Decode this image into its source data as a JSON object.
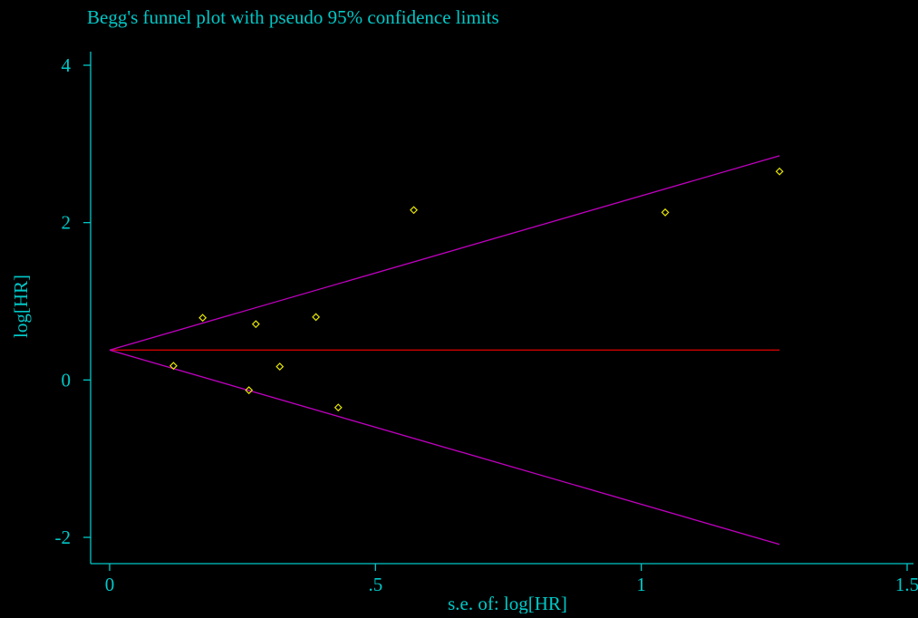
{
  "chart_data": {
    "type": "scatter",
    "title": "Begg's funnel plot with pseudo 95% confidence limits",
    "xlabel": "s.e. of: log[HR]",
    "ylabel": "log[HR]",
    "xlim": [
      0,
      1.5
    ],
    "ylim": [
      -2,
      4
    ],
    "x_ticks": [
      0,
      0.5,
      1,
      1.5
    ],
    "x_tick_labels": [
      "0",
      ".5",
      "1",
      "1.5"
    ],
    "y_ticks": [
      -2,
      0,
      2,
      4
    ],
    "y_tick_labels": [
      "-2",
      "0",
      "2",
      "4"
    ],
    "grid": false,
    "legend": "none",
    "pooled_estimate": 0.38,
    "funnel_max_se": 1.26,
    "points": [
      {
        "x": 0.12,
        "y": 0.18
      },
      {
        "x": 0.175,
        "y": 0.79
      },
      {
        "x": 0.262,
        "y": -0.13
      },
      {
        "x": 0.275,
        "y": 0.71
      },
      {
        "x": 0.32,
        "y": 0.17
      },
      {
        "x": 0.388,
        "y": 0.8
      },
      {
        "x": 0.43,
        "y": -0.35
      },
      {
        "x": 0.572,
        "y": 2.16
      },
      {
        "x": 1.045,
        "y": 2.13
      },
      {
        "x": 1.26,
        "y": 2.65
      }
    ],
    "colors": {
      "background": "#000000",
      "axis": "#00c8c8",
      "text": "#00c8c8",
      "points": "#e6e600",
      "pooled_line": "#d00000",
      "limit_lines": "#c000c0"
    }
  }
}
